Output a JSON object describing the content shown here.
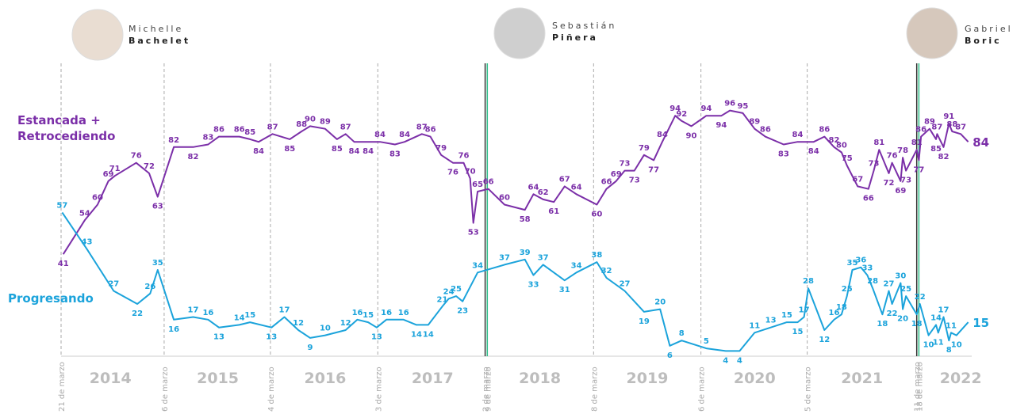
{
  "chart_data": {
    "type": "line",
    "xlim": [
      2014.22,
      2022.68
    ],
    "ylim": [
      2,
      108
    ],
    "xticks": [
      {
        "value": 2014.68,
        "label": "2014"
      },
      {
        "value": 2015.68,
        "label": "2015"
      },
      {
        "value": 2016.68,
        "label": "2016"
      },
      {
        "value": 2017.68,
        "label": "2017"
      },
      {
        "value": 2018.68,
        "label": "2018"
      },
      {
        "value": 2019.68,
        "label": "2019"
      },
      {
        "value": 2020.68,
        "label": "2020"
      },
      {
        "value": 2021.68,
        "label": "2021"
      },
      {
        "value": 2022.6,
        "label": "2022"
      }
    ],
    "date_markers": [
      {
        "value": 2014.22,
        "label": "21 de marzo",
        "color": "#aaaaaa"
      },
      {
        "value": 2015.18,
        "label": "6 de marzo",
        "color": "#aaaaaa"
      },
      {
        "value": 2016.17,
        "label": "4 de marzo",
        "color": "#aaaaaa"
      },
      {
        "value": 2017.17,
        "label": "3 de marzo",
        "color": "#aaaaaa"
      },
      {
        "value": 2018.17,
        "label": "2 de marzo",
        "color": "#333333"
      },
      {
        "value": 2018.19,
        "label": "9 de marzo",
        "color": "#2fbf8a"
      },
      {
        "value": 2019.18,
        "label": "8 de marzo",
        "color": "#aaaaaa"
      },
      {
        "value": 2020.18,
        "label": "6 de marzo",
        "color": "#aaaaaa"
      },
      {
        "value": 2021.17,
        "label": "5 de marzo",
        "color": "#aaaaaa"
      },
      {
        "value": 2022.19,
        "label": "11 de marzo",
        "color": "#333333"
      },
      {
        "value": 2022.21,
        "label": "18 de marzo",
        "color": "#2fbf8a"
      }
    ],
    "presidents": [
      {
        "first": "Michelle",
        "last": "Bachelet"
      },
      {
        "first": "Sebastián",
        "last": "Piñera"
      },
      {
        "first": "Gabriel",
        "last": "Boric"
      }
    ],
    "series": [
      {
        "name": "Estancada + Retrocediendo",
        "color": "#7b2fa8",
        "x": [
          2014.24,
          2014.44,
          2014.56,
          2014.66,
          2014.72,
          2014.92,
          2015.04,
          2015.12,
          2015.27,
          2015.45,
          2015.59,
          2015.69,
          2015.88,
          2015.98,
          2016.06,
          2016.19,
          2016.35,
          2016.46,
          2016.54,
          2016.68,
          2016.79,
          2016.87,
          2016.95,
          2017.08,
          2017.19,
          2017.33,
          2017.42,
          2017.58,
          2017.66,
          2017.76,
          2017.87,
          2017.97,
          2018.03,
          2018.06,
          2018.1,
          2018.2,
          2018.35,
          2018.54,
          2018.62,
          2018.71,
          2018.81,
          2018.91,
          2019.02,
          2019.21,
          2019.3,
          2019.39,
          2019.47,
          2019.56,
          2019.65,
          2019.74,
          2019.82,
          2019.94,
          2020.0,
          2020.09,
          2020.23,
          2020.37,
          2020.45,
          2020.57,
          2020.68,
          2020.78,
          2020.95,
          2021.08,
          2021.23,
          2021.33,
          2021.42,
          2021.49,
          2021.54,
          2021.64,
          2021.74,
          2021.79,
          2021.84,
          2021.93,
          2021.96,
          2022.04,
          2022.06,
          2022.09,
          2022.19,
          2022.21,
          2022.23,
          2022.31,
          2022.37,
          2022.38,
          2022.44,
          2022.49,
          2022.52,
          2022.6,
          2022.67
        ],
        "values": [
          41,
          54,
          60,
          69,
          71,
          76,
          72,
          63,
          82,
          82,
          83,
          86,
          86,
          85,
          84,
          87,
          85,
          88,
          90,
          89,
          85,
          87,
          84,
          84,
          84,
          83,
          84,
          87,
          86,
          79,
          76,
          76,
          70,
          53,
          65,
          66,
          60,
          58,
          64,
          62,
          61,
          67,
          64,
          60,
          66,
          69,
          73,
          73,
          79,
          77,
          84,
          94,
          92,
          90,
          94,
          94,
          96,
          95,
          89,
          86,
          83,
          84,
          84,
          86,
          82,
          80,
          75,
          67,
          66,
          73,
          81,
          72,
          76,
          69,
          78,
          73,
          81,
          77,
          86,
          89,
          85,
          87,
          82,
          91,
          88,
          87,
          84
        ]
      },
      {
        "name": "Progresando",
        "color": "#1ba3db",
        "x": [
          2014.23,
          2014.46,
          2014.71,
          2014.93,
          2015.05,
          2015.12,
          2015.27,
          2015.45,
          2015.59,
          2015.69,
          2015.88,
          2015.98,
          2016.18,
          2016.3,
          2016.43,
          2016.54,
          2016.68,
          2016.87,
          2016.98,
          2017.08,
          2017.16,
          2017.25,
          2017.41,
          2017.53,
          2017.64,
          2017.77,
          2017.83,
          2017.9,
          2017.96,
          2018.1,
          2018.35,
          2018.54,
          2018.62,
          2018.71,
          2018.91,
          2019.02,
          2019.21,
          2019.3,
          2019.47,
          2019.65,
          2019.8,
          2019.89,
          2020.0,
          2020.23,
          2020.41,
          2020.54,
          2020.68,
          2020.83,
          2020.98,
          2021.08,
          2021.14,
          2021.18,
          2021.33,
          2021.42,
          2021.49,
          2021.54,
          2021.59,
          2021.67,
          2021.73,
          2021.78,
          2021.87,
          2021.93,
          2021.96,
          2022.04,
          2022.06,
          2022.09,
          2022.19,
          2022.22,
          2022.3,
          2022.37,
          2022.39,
          2022.44,
          2022.49,
          2022.51,
          2022.56,
          2022.67
        ],
        "values": [
          57,
          43,
          27,
          22,
          26,
          35,
          16,
          17,
          16,
          13,
          14,
          15,
          13,
          17,
          12,
          9,
          10,
          12,
          16,
          15,
          13,
          16,
          16,
          14,
          14,
          21,
          24,
          25,
          23,
          34,
          37,
          39,
          33,
          37,
          31,
          34,
          38,
          32,
          27,
          19,
          20,
          6,
          8,
          5,
          4,
          4,
          11,
          13,
          15,
          15,
          17,
          28,
          12,
          16,
          18,
          25,
          35,
          36,
          33,
          28,
          18,
          27,
          22,
          30,
          20,
          25,
          18,
          22,
          10,
          14,
          11,
          17,
          8,
          11,
          10,
          15
        ]
      }
    ]
  }
}
